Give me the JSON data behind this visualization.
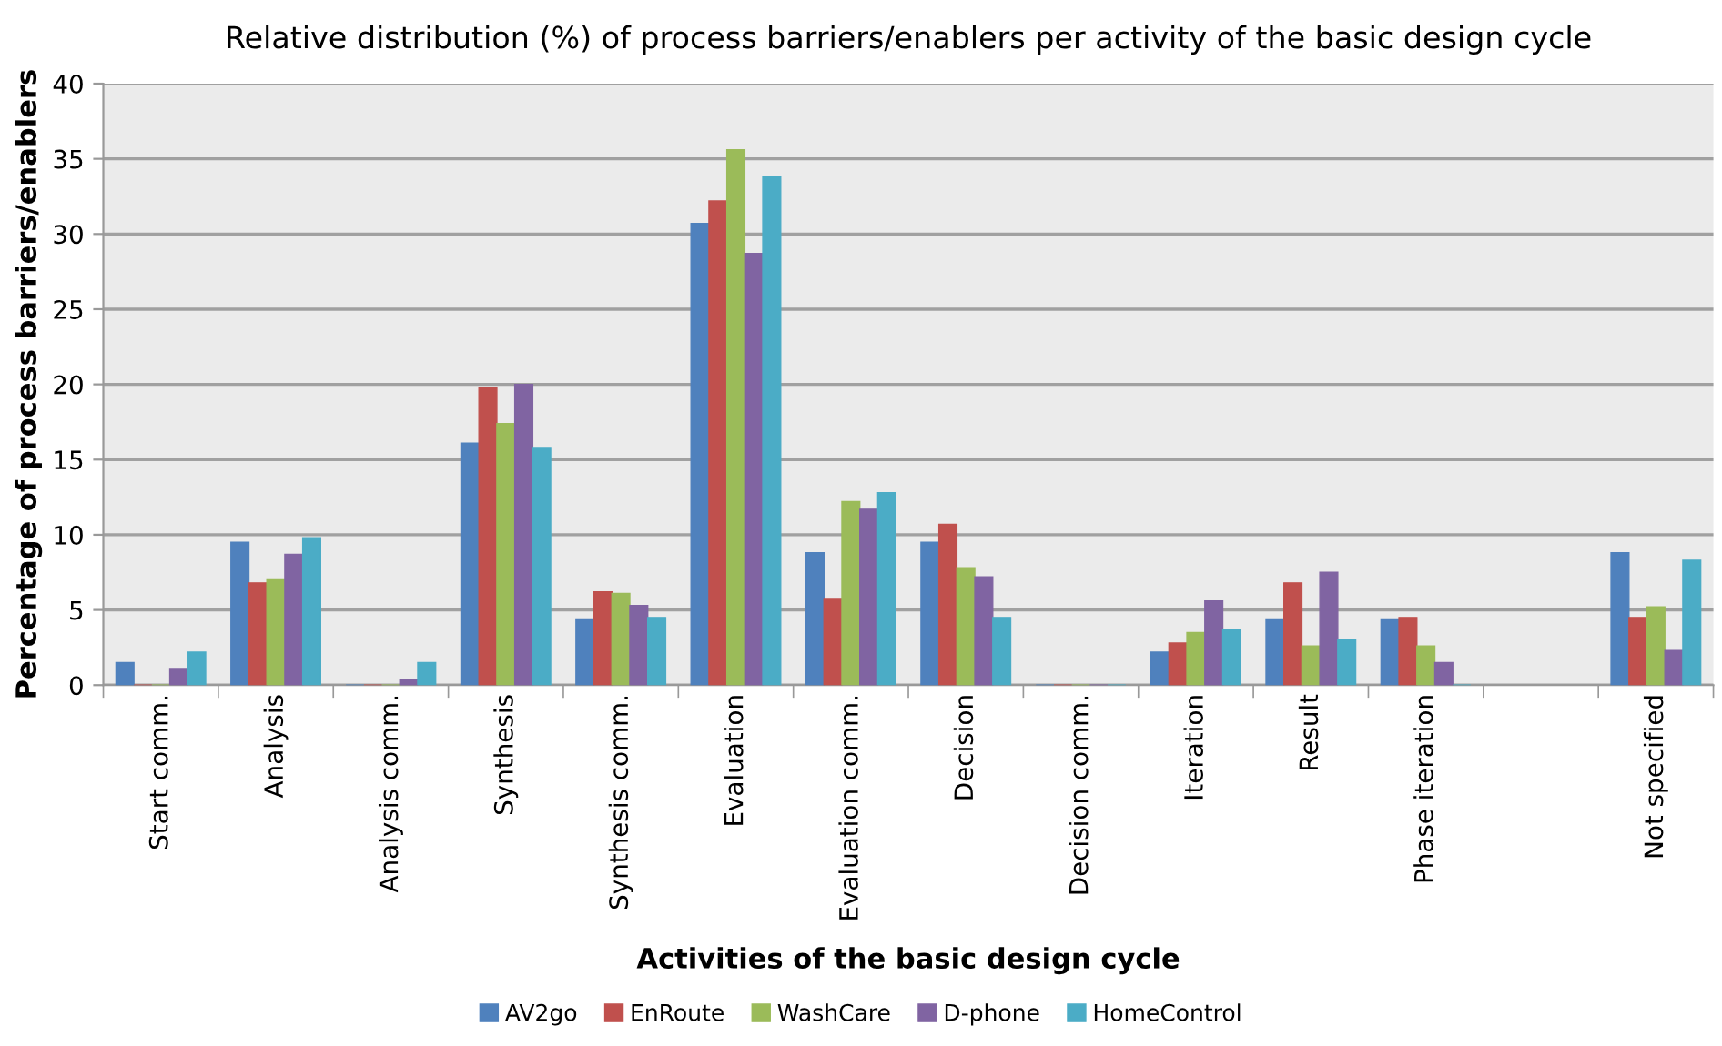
{
  "chart_data": {
    "type": "bar",
    "title": "Relative distribution (%) of process barriers/enablers per activity of the basic design cycle",
    "xlabel": "Activities of the basic design cycle",
    "ylabel": "Percentage of process barriers/enablers",
    "categories": [
      "Start comm.",
      "Analysis",
      "Analysis comm.",
      "Synthesis",
      "Synthesis comm.",
      "Evaluation",
      "Evaluation comm.",
      "Decision",
      "Decision comm.",
      "Iteration",
      "Result",
      "Phase iteration",
      null,
      "Not specified"
    ],
    "series": [
      {
        "name": "AV2go",
        "color": "#4f81bd",
        "values": [
          1.5,
          9.5,
          0,
          16.1,
          4.4,
          30.7,
          8.8,
          9.5,
          0,
          2.2,
          4.4,
          4.4,
          null,
          8.8
        ]
      },
      {
        "name": "EnRoute",
        "color": "#c0504d",
        "values": [
          0,
          6.8,
          0,
          19.8,
          6.2,
          32.2,
          5.7,
          10.7,
          0,
          2.8,
          6.8,
          4.5,
          null,
          4.5
        ]
      },
      {
        "name": "WashCare",
        "color": "#9bbb59",
        "values": [
          0,
          7.0,
          0,
          17.4,
          6.1,
          35.6,
          12.2,
          7.8,
          0,
          3.5,
          2.6,
          2.6,
          null,
          5.2
        ]
      },
      {
        "name": "D-phone",
        "color": "#8064a2",
        "values": [
          1.1,
          8.7,
          0.4,
          20.0,
          5.3,
          28.7,
          11.7,
          7.2,
          0,
          5.6,
          7.5,
          1.5,
          null,
          2.3
        ]
      },
      {
        "name": "HomeControl",
        "color": "#4bacc6",
        "values": [
          2.2,
          9.8,
          1.5,
          15.8,
          4.5,
          33.8,
          12.8,
          4.5,
          0,
          3.7,
          3.0,
          0,
          null,
          8.3
        ]
      }
    ],
    "ylim": [
      0,
      40
    ],
    "yticks": [
      0,
      5,
      10,
      15,
      20,
      25,
      30,
      35,
      40
    ],
    "grid": "y",
    "legend": "bottom"
  }
}
